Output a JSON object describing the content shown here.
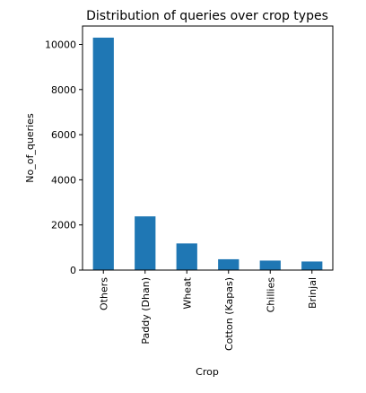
{
  "chart_data": {
    "type": "bar",
    "title": "Distribution of queries over crop types",
    "xlabel": "Crop",
    "ylabel": "No_of_queries",
    "categories": [
      "Others",
      "Paddy (Dhan)",
      "Wheat",
      "Cotton (Kapas)",
      "Chillies",
      "Brinjal"
    ],
    "values": [
      10300,
      2380,
      1180,
      480,
      420,
      380
    ],
    "ylim": [
      0,
      10815
    ],
    "yticks": [
      0,
      2000,
      4000,
      6000,
      8000,
      10000
    ],
    "ytick_labels": [
      "0",
      "2000",
      "4000",
      "6000",
      "8000",
      "10000"
    ],
    "grid": false,
    "legend": "none",
    "bar_color": "#1f77b4"
  }
}
